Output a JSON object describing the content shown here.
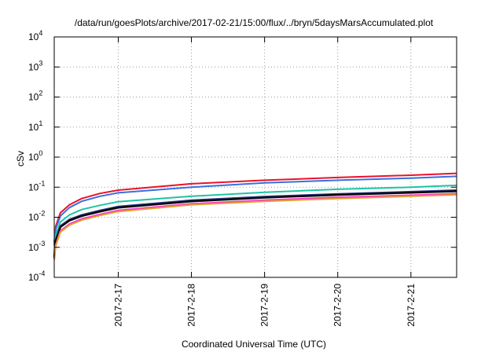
{
  "chart_data": {
    "type": "line",
    "title": "/data/run/goesPlots/archive/2017-02-21/15:00/flux/../bryn/5daysMarsAccumulated.plot",
    "xlabel": "Coordinated Universal Time (UTC)",
    "ylabel": "cSv",
    "y_scale": "log",
    "grid": true,
    "legend": "none",
    "xlim": [
      "2017-02-16 03:00",
      "2017-02-21 15:00"
    ],
    "ylim": [
      0.0001,
      10000
    ],
    "x_ticks": [
      "2017-2-17",
      "2017-2-18",
      "2017-2-19",
      "2017-2-20",
      "2017-2-21"
    ],
    "y_ticks": [
      {
        "value": 0.0001,
        "base": "10",
        "exp": "-4"
      },
      {
        "value": 0.001,
        "base": "10",
        "exp": "-3"
      },
      {
        "value": 0.01,
        "base": "10",
        "exp": "-2"
      },
      {
        "value": 0.1,
        "base": "10",
        "exp": "-1"
      },
      {
        "value": 1,
        "base": "10",
        "exp": "0"
      },
      {
        "value": 10,
        "base": "10",
        "exp": "1"
      },
      {
        "value": 100,
        "base": "10",
        "exp": "2"
      },
      {
        "value": 1000,
        "base": "10",
        "exp": "3"
      },
      {
        "value": 10000,
        "base": "10",
        "exp": "4"
      }
    ],
    "x": [
      "2017-02-16 03:00",
      "2017-02-16 03:30",
      "2017-02-16 05:00",
      "2017-02-16 08:00",
      "2017-02-16 12:00",
      "2017-02-16 18:00",
      "2017-02-17 00:00",
      "2017-02-18 00:00",
      "2017-02-19 00:00",
      "2017-02-20 00:00",
      "2017-02-21 00:00",
      "2017-02-21 15:00"
    ],
    "series": [
      {
        "color": "#e8132a",
        "values": [
          0.0015,
          0.005,
          0.014,
          0.026,
          0.042,
          0.062,
          0.08,
          0.13,
          0.17,
          0.21,
          0.25,
          0.29
        ]
      },
      {
        "color": "#3a6fe0",
        "values": [
          0.0012,
          0.004,
          0.011,
          0.021,
          0.034,
          0.05,
          0.065,
          0.1,
          0.14,
          0.17,
          0.2,
          0.23
        ]
      },
      {
        "color": "#1fc4a0",
        "values": [
          0.0007,
          0.0025,
          0.007,
          0.012,
          0.018,
          0.025,
          0.033,
          0.05,
          0.068,
          0.085,
          0.1,
          0.115
        ]
      },
      {
        "color": "#2d3d8f",
        "values": [
          0.0005,
          0.0018,
          0.0052,
          0.0085,
          0.012,
          0.017,
          0.023,
          0.037,
          0.049,
          0.06,
          0.071,
          0.08
        ]
      },
      {
        "color": "#0b0b0b",
        "values": [
          0.00045,
          0.0016,
          0.0047,
          0.0078,
          0.011,
          0.0155,
          0.021,
          0.034,
          0.045,
          0.056,
          0.066,
          0.074
        ]
      },
      {
        "color": "#ff2fd0",
        "values": [
          0.0004,
          0.0012,
          0.0035,
          0.006,
          0.0088,
          0.0125,
          0.017,
          0.028,
          0.037,
          0.046,
          0.054,
          0.061
        ]
      },
      {
        "color": "#e0a030",
        "values": [
          0.00038,
          0.0011,
          0.0032,
          0.0055,
          0.008,
          0.0115,
          0.0155,
          0.026,
          0.034,
          0.042,
          0.05,
          0.056
        ]
      }
    ]
  }
}
